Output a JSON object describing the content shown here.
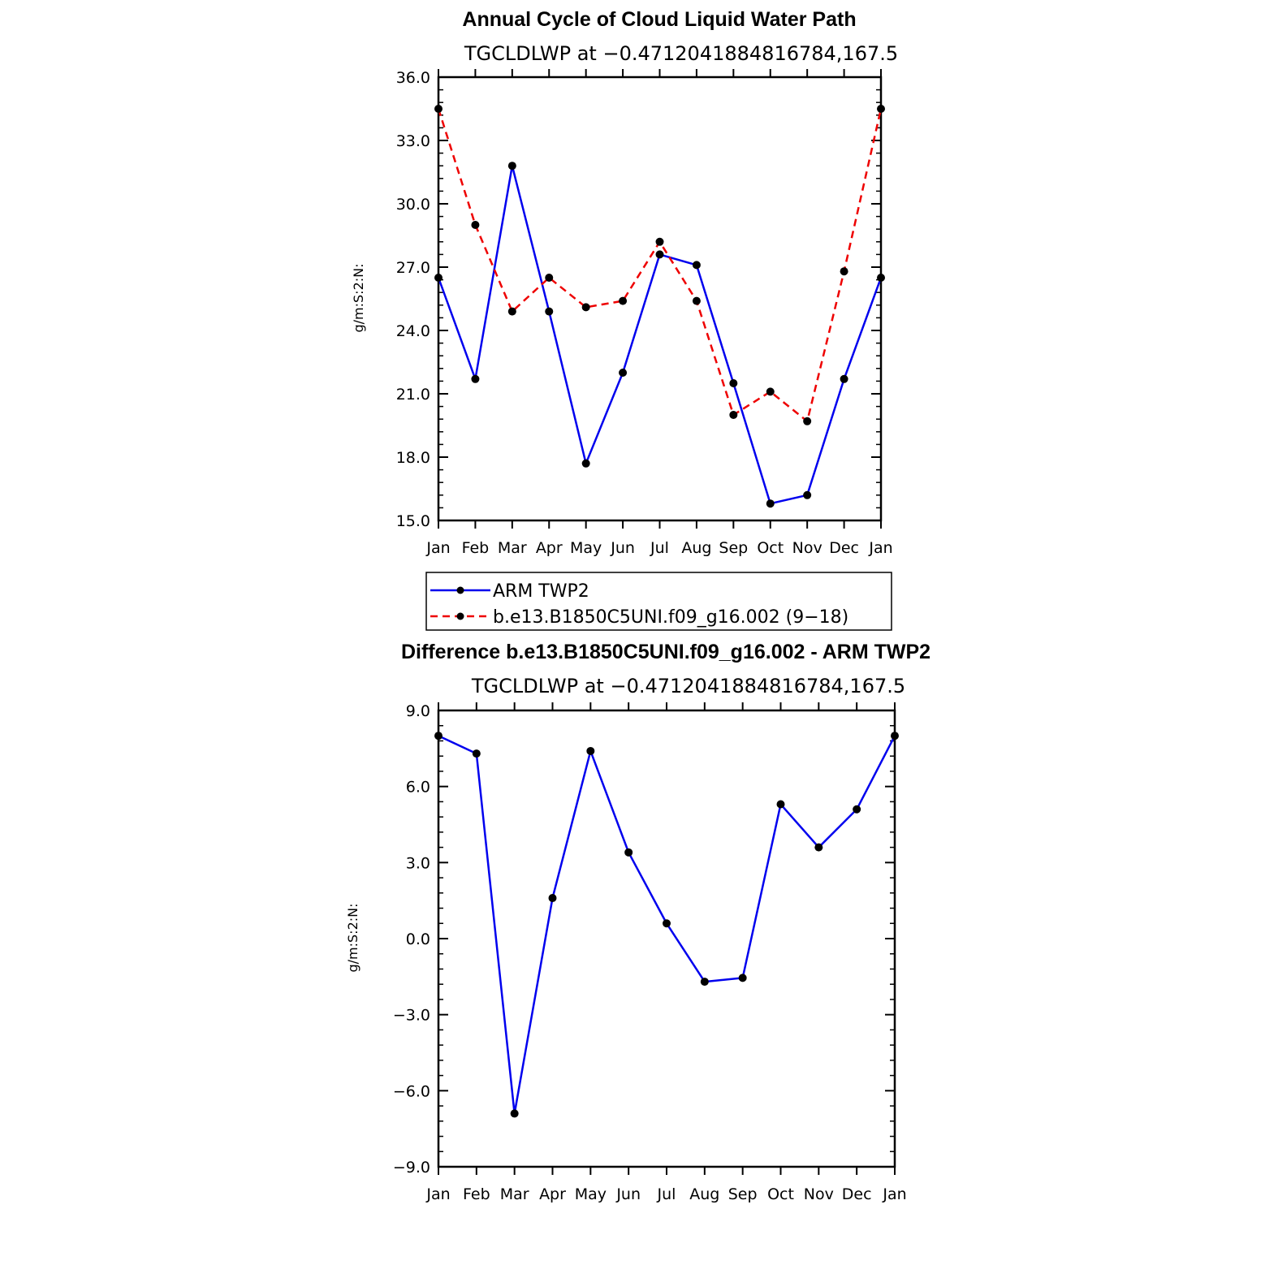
{
  "colors": {
    "obs": "#0000ee",
    "model": "#ee0000",
    "marker": "#000000"
  },
  "chart_data": [
    {
      "type": "line",
      "title": "Annual Cycle of Cloud Liquid Water Path",
      "subtitle": "TGCLDLWP at −0.4712041884816784,167.5",
      "ylabel": "g/m:S:2:N:",
      "categories": [
        "Jan",
        "Feb",
        "Mar",
        "Apr",
        "May",
        "Jun",
        "Jul",
        "Aug",
        "Sep",
        "Oct",
        "Nov",
        "Dec",
        "Jan"
      ],
      "ylim": [
        15.0,
        36.0
      ],
      "yticks": [
        "15.0",
        "18.0",
        "21.0",
        "24.0",
        "27.0",
        "30.0",
        "33.0",
        "36.0"
      ],
      "series": [
        {
          "name": "ARM TWP2",
          "style": "solid",
          "color": "#0000ee",
          "values": [
            26.5,
            21.7,
            31.8,
            24.9,
            17.7,
            22.0,
            27.6,
            27.1,
            21.5,
            15.8,
            16.2,
            21.7,
            26.5
          ]
        },
        {
          "name": "b.e13.B1850C5UNI.f09_g16.002 (9−18)",
          "style": "dashed",
          "color": "#ee0000",
          "values": [
            34.5,
            29.0,
            24.9,
            26.5,
            25.1,
            25.4,
            28.2,
            25.4,
            20.0,
            21.1,
            19.7,
            26.8,
            34.5
          ]
        }
      ],
      "legend": "bottom"
    },
    {
      "type": "line",
      "title": "Difference b.e13.B1850C5UNI.f09_g16.002 - ARM TWP2",
      "subtitle": "TGCLDLWP at −0.4712041884816784,167.5",
      "ylabel": "g/m:S:2:N:",
      "categories": [
        "Jan",
        "Feb",
        "Mar",
        "Apr",
        "May",
        "Jun",
        "Jul",
        "Aug",
        "Sep",
        "Oct",
        "Nov",
        "Dec",
        "Jan"
      ],
      "ylim": [
        -9.0,
        9.0
      ],
      "yticks": [
        "−9.0",
        "−6.0",
        "−3.0",
        "0.0",
        "3.0",
        "6.0",
        "9.0"
      ],
      "series": [
        {
          "style": "solid",
          "color": "#0000ee",
          "values": [
            8.0,
            7.3,
            -6.9,
            1.6,
            7.4,
            3.4,
            0.6,
            -1.7,
            -1.55,
            5.3,
            3.6,
            5.1,
            8.0
          ]
        }
      ]
    }
  ]
}
